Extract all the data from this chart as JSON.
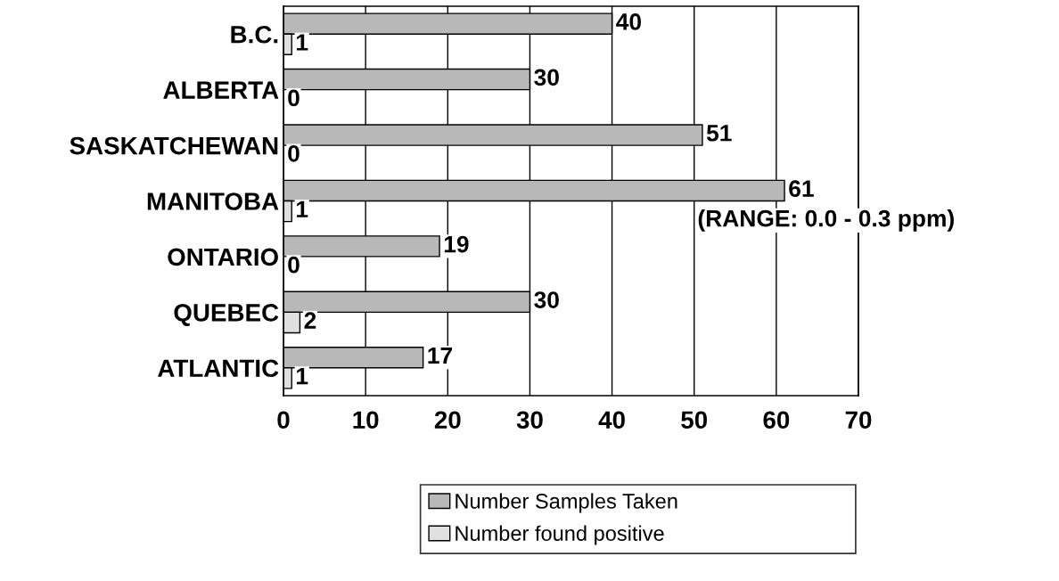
{
  "chart_data": {
    "type": "bar",
    "orientation": "horizontal",
    "categories": [
      "B.C.",
      "ALBERTA",
      "SASKATCHEWAN",
      "MANITOBA",
      "ONTARIO",
      "QUEBEC",
      "ATLANTIC"
    ],
    "series": [
      {
        "name": "Number Samples Taken",
        "color": "#b8b8b8",
        "values": [
          40,
          30,
          51,
          61,
          19,
          30,
          17
        ]
      },
      {
        "name": "Number found positive",
        "color": "#e0e0e0",
        "values": [
          1,
          0,
          0,
          1,
          0,
          2,
          1
        ]
      }
    ],
    "xlim": [
      0,
      70
    ],
    "xticks": [
      0,
      10,
      20,
      30,
      40,
      50,
      60,
      70
    ],
    "grid": "x",
    "legend": "bottom",
    "data_labels": true,
    "annotations": [
      "(RANGE: 0.0 - 0.3 ppm)"
    ]
  }
}
